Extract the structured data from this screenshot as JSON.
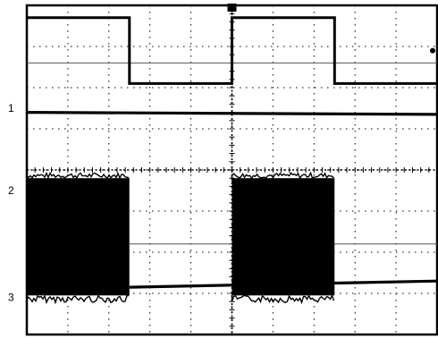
{
  "chart_data": {
    "type": "line",
    "title": "",
    "xlabel": "",
    "ylabel": "",
    "grid": true,
    "divisions": {
      "x": 10,
      "y": 8
    },
    "xlim": [
      0,
      10
    ],
    "ylim": [
      0,
      8
    ],
    "trigger_position_div": 5,
    "channel_markers": [
      {
        "name": "1",
        "level_div": 5.5
      },
      {
        "name": "2",
        "level_div": 3.5
      },
      {
        "name": "3",
        "level_div": 0.9
      }
    ],
    "series": [
      {
        "channel": "1",
        "kind": "square",
        "points": [
          [
            0,
            7.7
          ],
          [
            2.5,
            7.7
          ],
          [
            2.5,
            6.1
          ],
          [
            5,
            6.1
          ],
          [
            5,
            7.7
          ],
          [
            7.5,
            7.7
          ],
          [
            7.5,
            6.1
          ],
          [
            10,
            6.1
          ]
        ]
      },
      {
        "channel": "1",
        "kind": "flat",
        "points": [
          [
            0,
            5.4
          ],
          [
            10,
            5.35
          ]
        ]
      },
      {
        "channel": "3",
        "kind": "burst",
        "burst_top_div": 3.8,
        "burst_bottom_div": 0.95,
        "bursts": [
          [
            0,
            2.5
          ],
          [
            5,
            7.5
          ]
        ],
        "baseline_points": [
          [
            2.5,
            1.15
          ],
          [
            5,
            1.2
          ],
          [
            7.5,
            1.25
          ],
          [
            10,
            1.3
          ]
        ]
      }
    ],
    "reference_lines_div": [
      6.6,
      2.2
    ],
    "right_edge_marker_div": 6.9
  },
  "colors": {
    "trace": "#000000",
    "grid": "#000000",
    "background": "#ffffff",
    "reference": "#555555"
  }
}
